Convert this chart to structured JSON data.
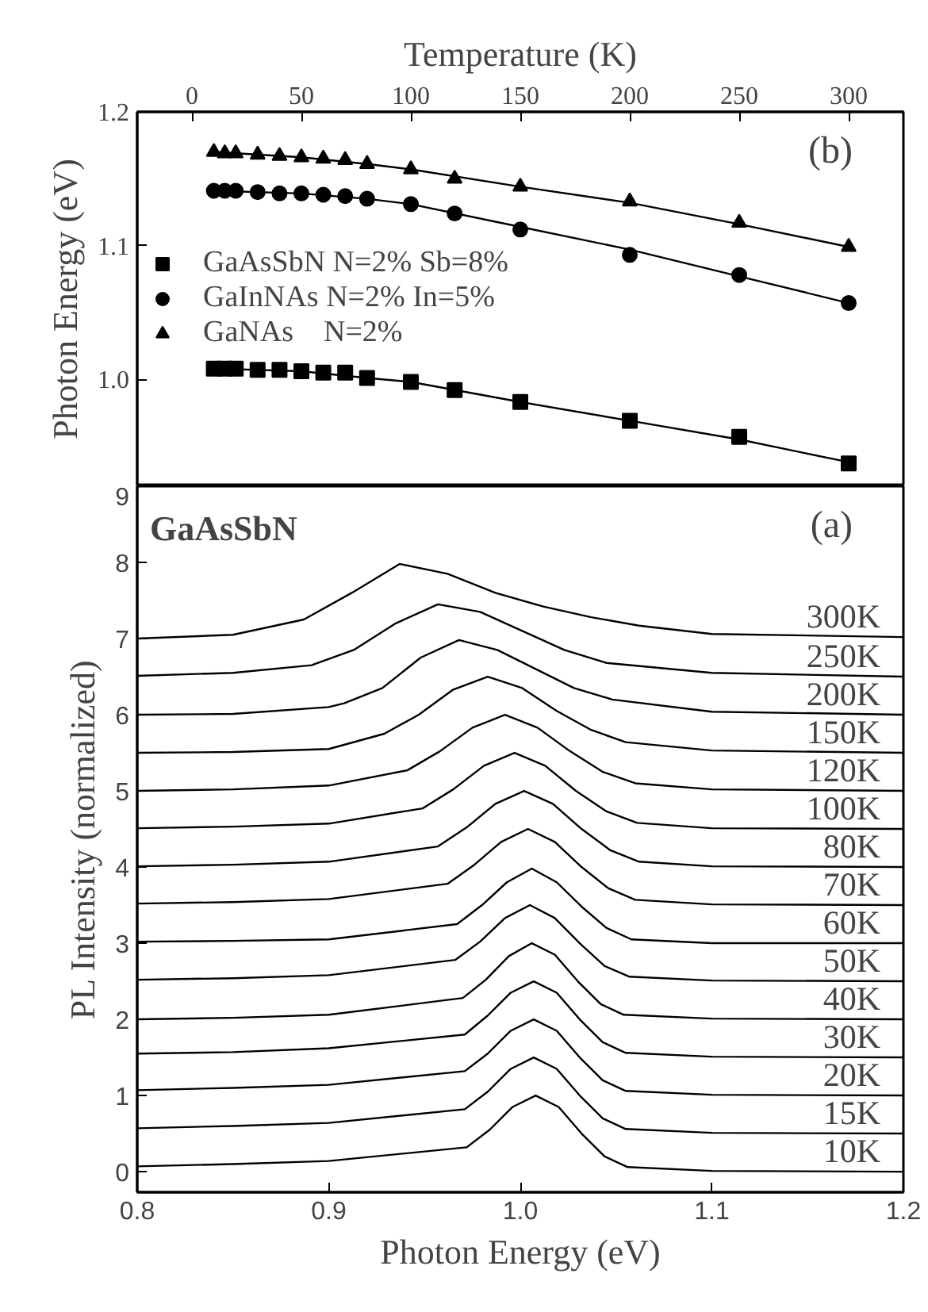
{
  "chart_data": [
    {
      "type": "scatter",
      "xlabel": "Temperature (K)",
      "ylabel": "Photon Energy (eV)",
      "xlim": [
        -25,
        325
      ],
      "xticks": [
        0,
        50,
        100,
        150,
        200,
        250,
        300
      ],
      "ylim": [
        0.92,
        1.2
      ],
      "yticks": [
        {
          "value": 1.0,
          "label": "1.0"
        },
        1.1,
        1.2
      ],
      "legend": "left",
      "annotations": [
        "(b)"
      ],
      "series": [
        {
          "name": "GaAsSbN N=2% Sb=8%",
          "color": "#000000",
          "marker": "square",
          "x": [
            10,
            15,
            20,
            30,
            40,
            50,
            60,
            70,
            80,
            100,
            120,
            150,
            200,
            250,
            300
          ],
          "values": [
            1.008,
            1.008,
            1.008,
            1.007,
            1.007,
            1.006,
            1.005,
            1.005,
            1.001,
            0.998,
            0.992,
            0.983,
            0.969,
            0.957,
            0.937
          ]
        },
        {
          "name": "GaInNAs N=2% In=5%",
          "color": "#000000",
          "marker": "circle",
          "x": [
            10,
            15,
            20,
            30,
            40,
            50,
            60,
            70,
            80,
            100,
            120,
            150,
            200,
            250,
            300
          ],
          "values": [
            1.141,
            1.141,
            1.141,
            1.14,
            1.139,
            1.139,
            1.138,
            1.137,
            1.135,
            1.131,
            1.124,
            1.112,
            1.093,
            1.078,
            1.057
          ]
        },
        {
          "name": "GaNAs    N=2%",
          "color": "#000000",
          "marker": "triangle",
          "x": [
            10,
            15,
            20,
            30,
            40,
            50,
            60,
            70,
            80,
            100,
            120,
            150,
            200,
            250,
            300
          ],
          "values": [
            1.17,
            1.169,
            1.169,
            1.168,
            1.167,
            1.166,
            1.165,
            1.164,
            1.161,
            1.157,
            1.15,
            1.144,
            1.133,
            1.117,
            1.099
          ]
        },
        {
          "type": "line",
          "color": "#000000",
          "x": [
            10,
            50,
            80,
            100,
            150,
            200,
            250,
            300
          ],
          "values": [
            1.008,
            1.006,
            1.001,
            0.998,
            0.983,
            0.969,
            0.955,
            0.938
          ]
        },
        {
          "type": "line",
          "color": "#000000",
          "x": [
            10,
            50,
            80,
            100,
            150,
            200,
            250,
            300
          ],
          "values": [
            1.141,
            1.139,
            1.135,
            1.131,
            1.114,
            1.097,
            1.077,
            1.057
          ]
        },
        {
          "type": "line",
          "color": "#000000",
          "x": [
            10,
            50,
            80,
            100,
            150,
            200,
            250,
            300
          ],
          "values": [
            1.17,
            1.166,
            1.161,
            1.157,
            1.144,
            1.132,
            1.116,
            1.099
          ]
        }
      ]
    },
    {
      "type": "line",
      "xlabel": "Photon Energy (eV)",
      "ylabel": "PL Intensity (normalized)",
      "xlim": [
        0.8,
        1.2
      ],
      "xticks": [
        0.8,
        0.9,
        {
          "value": 1.0,
          "label": "1.0"
        },
        1.1,
        1.2
      ],
      "ylim": [
        -0.27,
        9
      ],
      "yticks": [
        0,
        1,
        2,
        3,
        4,
        5,
        6,
        7,
        8,
        9
      ],
      "annotations": [
        "GaAsSbN",
        "(a)"
      ],
      "series": [
        {
          "name": "10K",
          "color": "#000000",
          "x": [
            0.8,
            0.85,
            0.9,
            0.972,
            0.984,
            0.996,
            1.008,
            1.02,
            1.032,
            1.044,
            1.056,
            1.1,
            1.2
          ],
          "values": [
            0.07,
            0.1,
            0.14,
            0.32,
            0.55,
            0.85,
            1.0,
            0.85,
            0.5,
            0.2,
            0.06,
            0.01,
            0.0
          ]
        },
        {
          "name": "15K",
          "color": "#000000",
          "x": [
            0.8,
            0.85,
            0.9,
            0.971,
            0.983,
            0.995,
            1.007,
            1.019,
            1.031,
            1.043,
            1.055,
            1.1,
            1.2
          ],
          "values": [
            0.57,
            0.6,
            0.64,
            0.82,
            1.05,
            1.35,
            1.5,
            1.35,
            1.0,
            0.7,
            0.56,
            0.51,
            0.5
          ]
        },
        {
          "name": "20K",
          "color": "#000000",
          "x": [
            0.8,
            0.85,
            0.9,
            0.971,
            0.983,
            0.995,
            1.007,
            1.019,
            1.031,
            1.043,
            1.055,
            1.1,
            1.2
          ],
          "values": [
            1.07,
            1.1,
            1.14,
            1.32,
            1.55,
            1.85,
            2.0,
            1.85,
            1.5,
            1.2,
            1.06,
            1.01,
            1.0
          ]
        },
        {
          "name": "30K",
          "color": "#000000",
          "x": [
            0.8,
            0.85,
            0.9,
            0.971,
            0.983,
            0.995,
            1.007,
            1.019,
            1.031,
            1.043,
            1.055,
            1.1,
            1.2
          ],
          "values": [
            1.55,
            1.57,
            1.62,
            1.8,
            2.05,
            2.35,
            2.5,
            2.35,
            2.0,
            1.7,
            1.56,
            1.51,
            1.5
          ]
        },
        {
          "name": "40K",
          "color": "#000000",
          "x": [
            0.8,
            0.85,
            0.9,
            0.97,
            0.982,
            0.994,
            1.006,
            1.018,
            1.03,
            1.042,
            1.054,
            1.1,
            1.2
          ],
          "values": [
            2.0,
            2.02,
            2.06,
            2.28,
            2.52,
            2.83,
            3.0,
            2.85,
            2.5,
            2.2,
            2.06,
            2.01,
            2.0
          ]
        },
        {
          "name": "50K",
          "color": "#000000",
          "x": [
            0.8,
            0.85,
            0.9,
            0.966,
            0.979,
            0.992,
            1.005,
            1.018,
            1.031,
            1.044,
            1.057,
            1.1,
            1.2
          ],
          "values": [
            2.52,
            2.54,
            2.58,
            2.78,
            3.02,
            3.33,
            3.5,
            3.33,
            3.0,
            2.7,
            2.56,
            2.51,
            2.5
          ]
        },
        {
          "name": "60K",
          "color": "#000000",
          "x": [
            0.8,
            0.85,
            0.9,
            0.967,
            0.98,
            0.993,
            1.006,
            1.019,
            1.032,
            1.045,
            1.058,
            1.1,
            1.2
          ],
          "values": [
            3.02,
            3.03,
            3.05,
            3.25,
            3.5,
            3.8,
            3.98,
            3.8,
            3.48,
            3.2,
            3.05,
            3.0,
            3.0
          ]
        },
        {
          "name": "70K",
          "color": "#000000",
          "x": [
            0.8,
            0.85,
            0.9,
            0.962,
            0.976,
            0.99,
            1.004,
            1.018,
            1.032,
            1.046,
            1.06,
            1.1,
            1.2
          ],
          "values": [
            3.52,
            3.54,
            3.58,
            3.78,
            4.03,
            4.33,
            4.5,
            4.33,
            4.0,
            3.72,
            3.57,
            3.51,
            3.5
          ]
        },
        {
          "name": "80K",
          "color": "#000000",
          "x": [
            0.8,
            0.85,
            0.9,
            0.957,
            0.972,
            0.987,
            1.002,
            1.017,
            1.032,
            1.047,
            1.062,
            1.1,
            1.2
          ],
          "values": [
            4.01,
            4.03,
            4.07,
            4.27,
            4.52,
            4.83,
            5.0,
            4.83,
            4.5,
            4.22,
            4.07,
            4.01,
            4.0
          ]
        },
        {
          "name": "100K",
          "color": "#000000",
          "x": [
            0.8,
            0.85,
            0.9,
            0.949,
            0.965,
            0.981,
            0.997,
            1.013,
            1.029,
            1.045,
            1.061,
            1.1,
            1.2
          ],
          "values": [
            4.51,
            4.53,
            4.57,
            4.77,
            5.02,
            5.33,
            5.5,
            5.33,
            5.0,
            4.73,
            4.58,
            4.51,
            4.5
          ]
        },
        {
          "name": "120K",
          "color": "#000000",
          "x": [
            0.8,
            0.85,
            0.9,
            0.941,
            0.958,
            0.975,
            0.992,
            1.009,
            1.026,
            1.043,
            1.06,
            1.1,
            1.2
          ],
          "values": [
            5.0,
            5.02,
            5.07,
            5.27,
            5.52,
            5.83,
            6.0,
            5.83,
            5.52,
            5.25,
            5.1,
            5.02,
            5.0
          ]
        },
        {
          "name": "150K",
          "color": "#000000",
          "x": [
            0.8,
            0.85,
            0.9,
            0.929,
            0.947,
            0.965,
            0.983,
            1.001,
            1.019,
            1.037,
            1.055,
            1.1,
            1.2
          ],
          "values": [
            5.5,
            5.51,
            5.55,
            5.75,
            6.0,
            6.33,
            6.5,
            6.35,
            6.05,
            5.8,
            5.64,
            5.53,
            5.5
          ]
        },
        {
          "name": "200K",
          "color": "#000000",
          "x": [
            0.8,
            0.85,
            0.9,
            0.908,
            0.928,
            0.948,
            0.968,
            0.988,
            1.008,
            1.028,
            1.048,
            1.1,
            1.2
          ],
          "values": [
            6.0,
            6.01,
            6.1,
            6.15,
            6.35,
            6.75,
            6.98,
            6.85,
            6.6,
            6.35,
            6.2,
            6.04,
            6.0
          ]
        },
        {
          "name": "250K",
          "color": "#000000",
          "x": [
            0.8,
            0.85,
            0.891,
            0.913,
            0.935,
            0.957,
            0.979,
            1.001,
            1.023,
            1.045,
            1.1,
            1.2
          ],
          "values": [
            6.51,
            6.55,
            6.65,
            6.85,
            7.2,
            7.45,
            7.35,
            7.1,
            6.85,
            6.68,
            6.55,
            6.5
          ]
        },
        {
          "name": "300K",
          "color": "#000000",
          "x": [
            0.8,
            0.85,
            0.887,
            0.912,
            0.937,
            0.962,
            0.987,
            1.012,
            1.037,
            1.062,
            1.1,
            1.2
          ],
          "values": [
            7.0,
            7.05,
            7.25,
            7.6,
            7.98,
            7.85,
            7.6,
            7.42,
            7.28,
            7.17,
            7.06,
            7.02
          ]
        }
      ]
    }
  ]
}
